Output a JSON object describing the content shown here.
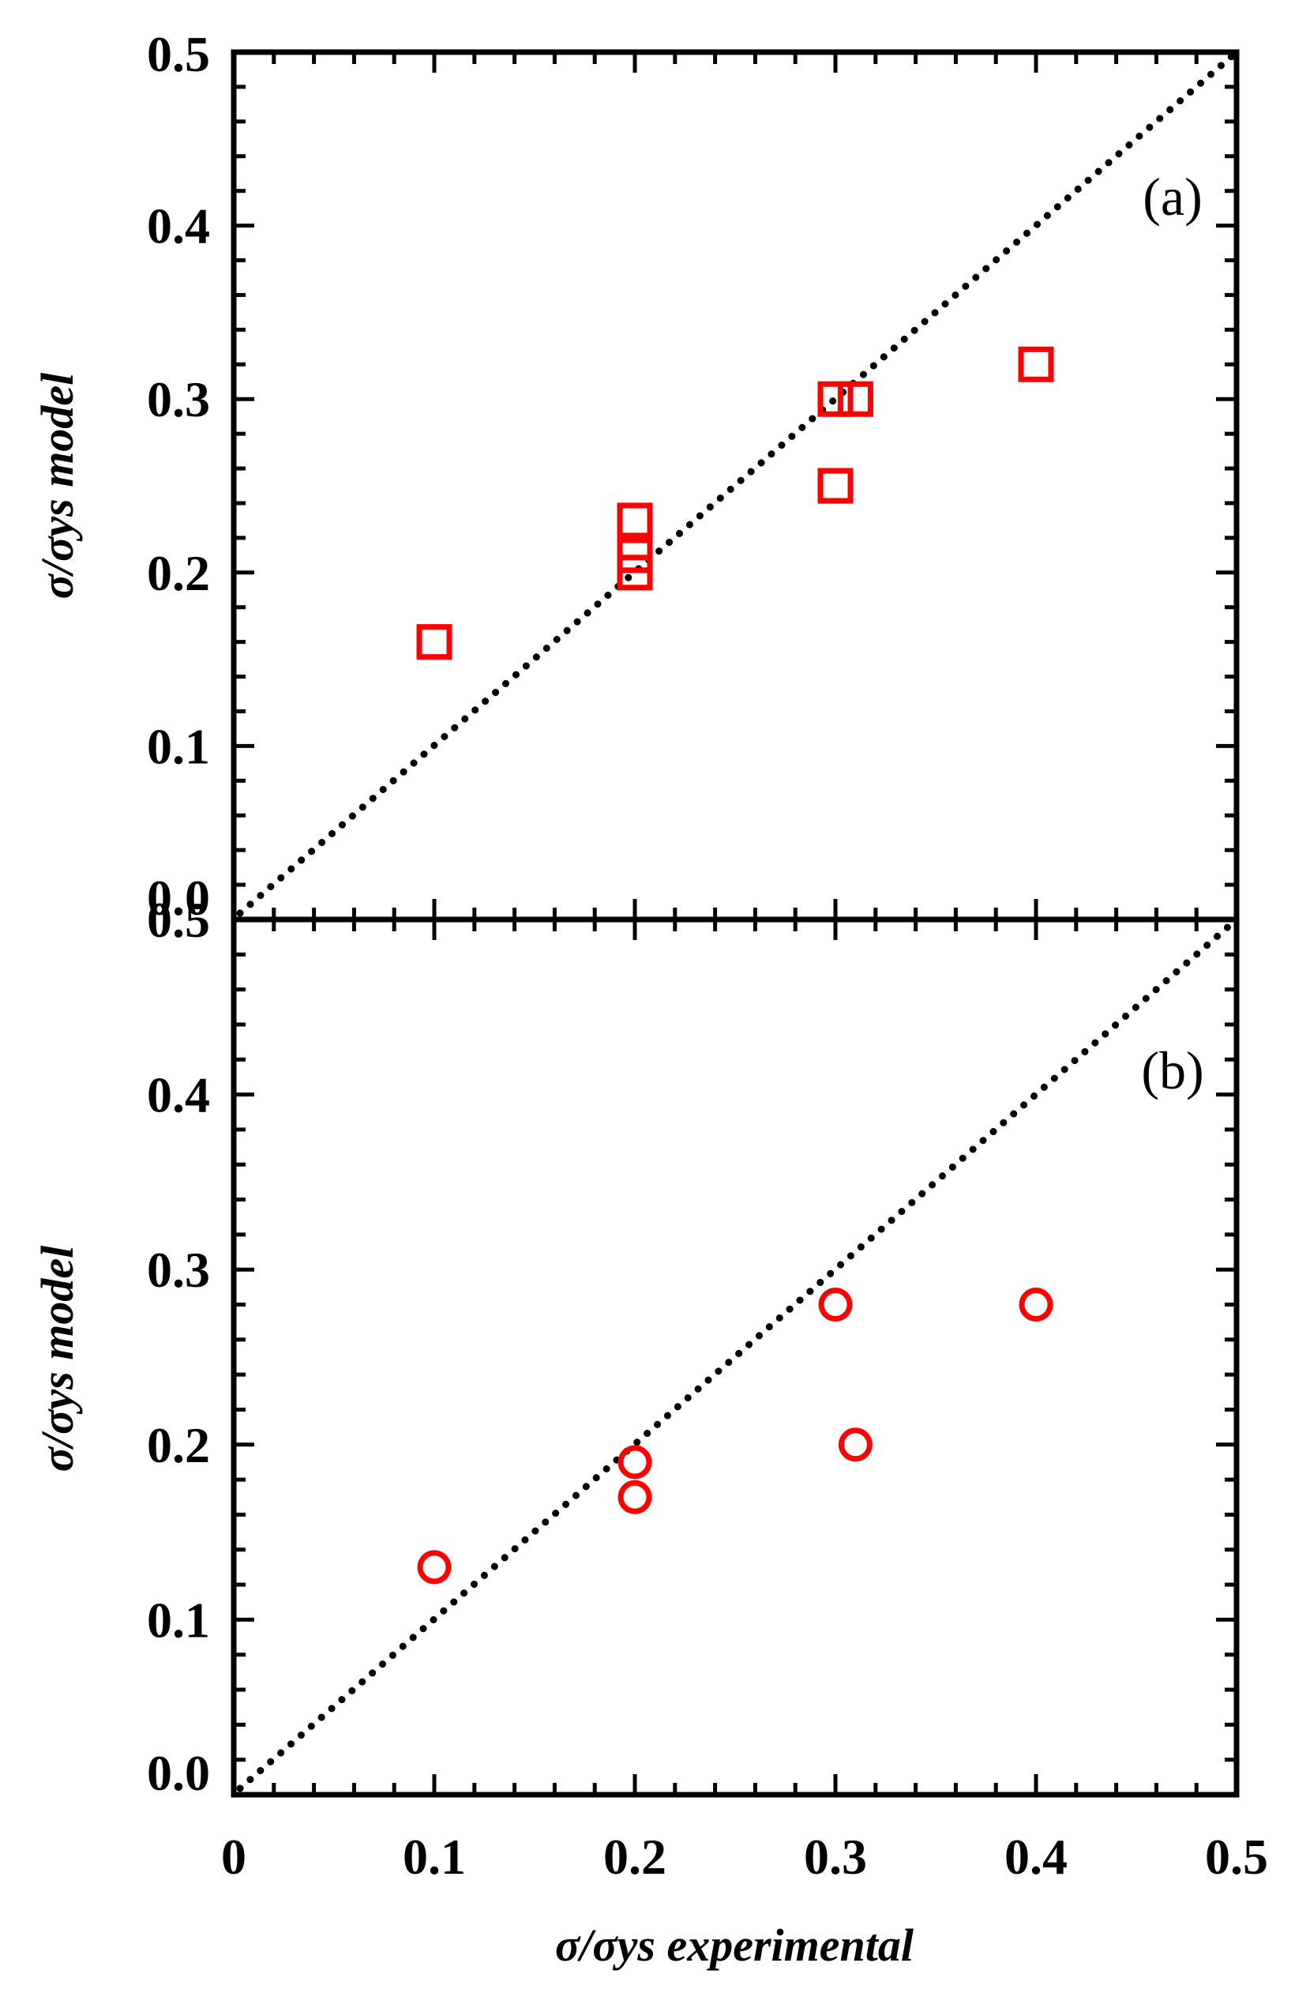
{
  "chart_data": [
    {
      "type": "scatter",
      "panel_label": "(a)",
      "ylabel": "σ/σys model",
      "xlabel": "",
      "xlim": [
        0,
        0.5
      ],
      "ylim": [
        0,
        0.5
      ],
      "y_tick_labels": [
        "0.0",
        "0.1",
        "0.2",
        "0.3",
        "0.4",
        "0.5"
      ],
      "x_tick_labels": [],
      "marker": "square",
      "marker_color": "#ff0000",
      "reference_line": {
        "style": "dotted",
        "from": [
          0,
          0
        ],
        "to": [
          0.5,
          0.5
        ]
      },
      "series": [
        {
          "points": [
            [
              0.1,
              0.16
            ],
            [
              0.2,
              0.2
            ],
            [
              0.2,
              0.21
            ],
            [
              0.2,
              0.23
            ],
            [
              0.3,
              0.25
            ],
            [
              0.3,
              0.3
            ],
            [
              0.31,
              0.3
            ],
            [
              0.4,
              0.32
            ]
          ]
        }
      ]
    },
    {
      "type": "scatter",
      "panel_label": "(b)",
      "ylabel": "σ/σys model",
      "xlabel": "σ/σys experimental",
      "xlim": [
        0,
        0.5
      ],
      "ylim": [
        0,
        0.5
      ],
      "y_tick_labels": [
        "0.0",
        "0.1",
        "0.2",
        "0.3",
        "0.4",
        "0.5"
      ],
      "x_tick_labels": [
        "0",
        "0.1",
        "0.2",
        "0.3",
        "0.4",
        "0.5"
      ],
      "marker": "circle",
      "marker_color": "#ff0000",
      "reference_line": {
        "style": "dotted",
        "from": [
          0,
          0
        ],
        "to": [
          0.5,
          0.5
        ]
      },
      "series": [
        {
          "points": [
            [
              0.1,
              0.13
            ],
            [
              0.2,
              0.17
            ],
            [
              0.2,
              0.19
            ],
            [
              0.3,
              0.28
            ],
            [
              0.31,
              0.2
            ],
            [
              0.4,
              0.28
            ]
          ]
        }
      ]
    }
  ]
}
